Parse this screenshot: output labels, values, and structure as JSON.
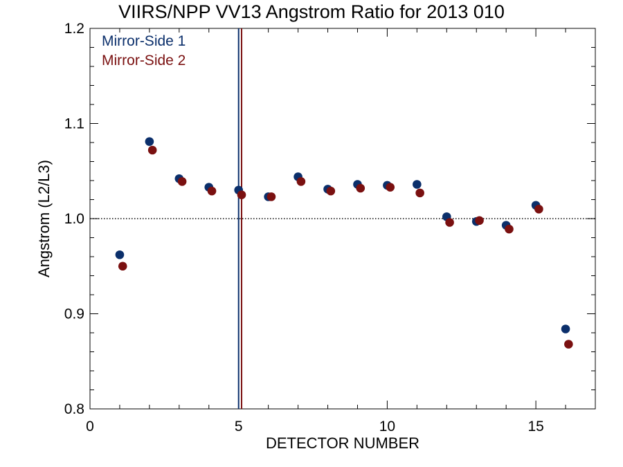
{
  "title": "VIIRS/NPP VV13 Angstrom Ratio for 2013 010",
  "chart_data": {
    "type": "scatter",
    "title": "VIIRS/NPP VV13 Angstrom Ratio for 2013 010",
    "xlabel": "DETECTOR NUMBER",
    "ylabel": "Angstrom (L2/L3)",
    "xlim": [
      0,
      17
    ],
    "ylim": [
      0.8,
      1.2
    ],
    "xticks": [
      0,
      5,
      10,
      15
    ],
    "xtick_labels": [
      "0",
      "5",
      "10",
      "15"
    ],
    "yticks": [
      0.8,
      0.9,
      1.0,
      1.1,
      1.2
    ],
    "ytick_labels": [
      "0.8",
      "0.9",
      "1.0",
      "1.1",
      "1.2"
    ],
    "reference_line_y": 1.0,
    "legend_position": "top-left",
    "series": [
      {
        "name": "Mirror-Side 1",
        "color": "#0b2f6b",
        "x": [
          1,
          2,
          3,
          4,
          5,
          6,
          7,
          8,
          9,
          10,
          11,
          12,
          13,
          14,
          15,
          16
        ],
        "y": [
          0.962,
          1.081,
          1.042,
          1.033,
          1.03,
          1.023,
          1.044,
          1.031,
          1.036,
          1.035,
          1.036,
          1.002,
          0.997,
          0.993,
          1.014,
          0.884
        ],
        "vertical_line_x": 5
      },
      {
        "name": "Mirror-Side 2",
        "color": "#7a1010",
        "x": [
          1.1,
          2.1,
          3.1,
          4.1,
          5.1,
          6.1,
          7.1,
          8.1,
          9.1,
          10.1,
          11.1,
          12.1,
          13.1,
          14.1,
          15.1,
          16.1
        ],
        "y": [
          0.95,
          1.072,
          1.039,
          1.029,
          1.025,
          1.023,
          1.039,
          1.029,
          1.032,
          1.033,
          1.027,
          0.996,
          0.998,
          0.989,
          1.01,
          0.868
        ],
        "vertical_line_x": 5.1
      }
    ]
  }
}
